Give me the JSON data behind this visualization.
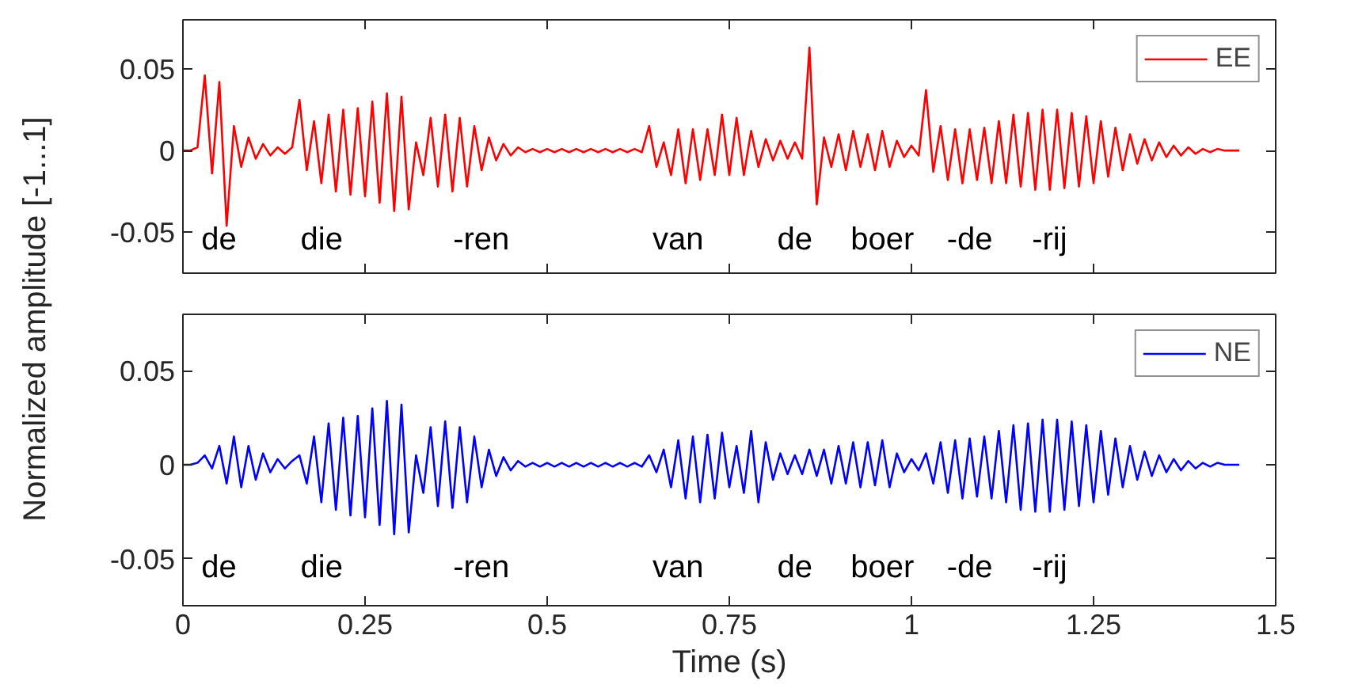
{
  "chart_data": [
    {
      "type": "line",
      "ylabel": "Normalized amplitude [-1...1]",
      "xlim": [
        0,
        1.5
      ],
      "xticks": [
        0,
        0.25,
        0.5,
        0.75,
        1,
        1.25,
        1.5
      ],
      "ylim": [
        -0.075,
        0.08
      ],
      "yticks": [
        -0.05,
        0,
        0.05
      ],
      "tick_labels": "y",
      "grid": false,
      "legend": "top right",
      "marker": "none",
      "line_style": "solid",
      "x": [
        0,
        0.01,
        0.02,
        0.03,
        0.04,
        0.05,
        0.06,
        0.07,
        0.08,
        0.09,
        0.1,
        0.11,
        0.12,
        0.13,
        0.14,
        0.15,
        0.16,
        0.17,
        0.18,
        0.19,
        0.2,
        0.21,
        0.22,
        0.23,
        0.24,
        0.25,
        0.26,
        0.27,
        0.28,
        0.29,
        0.3,
        0.31,
        0.32,
        0.33,
        0.34,
        0.35,
        0.36,
        0.37,
        0.38,
        0.39,
        0.4,
        0.41,
        0.42,
        0.43,
        0.44,
        0.45,
        0.46,
        0.47,
        0.48,
        0.49,
        0.5,
        0.51,
        0.52,
        0.53,
        0.54,
        0.55,
        0.56,
        0.57,
        0.58,
        0.59,
        0.6,
        0.61,
        0.62,
        0.63,
        0.64,
        0.65,
        0.66,
        0.67,
        0.68,
        0.69,
        0.7,
        0.71,
        0.72,
        0.73,
        0.74,
        0.75,
        0.76,
        0.77,
        0.78,
        0.79,
        0.8,
        0.81,
        0.82,
        0.83,
        0.84,
        0.85,
        0.86,
        0.87,
        0.88,
        0.89,
        0.9,
        0.91,
        0.92,
        0.93,
        0.94,
        0.95,
        0.96,
        0.97,
        0.98,
        0.99,
        1,
        1.01,
        1.02,
        1.03,
        1.04,
        1.05,
        1.06,
        1.07,
        1.08,
        1.09,
        1.1,
        1.11,
        1.12,
        1.13,
        1.14,
        1.15,
        1.16,
        1.17,
        1.18,
        1.19,
        1.2,
        1.21,
        1.22,
        1.23,
        1.24,
        1.25,
        1.26,
        1.27,
        1.28,
        1.29,
        1.3,
        1.31,
        1.32,
        1.33,
        1.34,
        1.35,
        1.36,
        1.37,
        1.38,
        1.39,
        1.4,
        1.41,
        1.42,
        1.43,
        1.44,
        1.45
      ],
      "series": [
        {
          "name": "EE",
          "color": "#ff0000",
          "values": [
            0,
            0,
            0.002,
            0.046,
            -0.014,
            0.042,
            -0.046,
            0.015,
            -0.01,
            0.008,
            -0.005,
            0.004,
            -0.003,
            0.002,
            -0.002,
            0.002,
            0.031,
            -0.012,
            0.018,
            -0.02,
            0.022,
            -0.025,
            0.025,
            -0.027,
            0.026,
            -0.028,
            0.03,
            -0.032,
            0.035,
            -0.037,
            0.033,
            -0.036,
            0.005,
            -0.015,
            0.02,
            -0.022,
            0.022,
            -0.025,
            0.02,
            -0.022,
            0.015,
            -0.012,
            0.008,
            -0.006,
            0.004,
            -0.003,
            0.002,
            -0.001,
            0.001,
            -0.001,
            0.001,
            -0.001,
            0.001,
            -0.001,
            0.001,
            -0.001,
            0.001,
            -0.001,
            0.001,
            -0.001,
            0.001,
            -0.001,
            0.001,
            -0.001,
            0.015,
            -0.01,
            0.005,
            -0.015,
            0.013,
            -0.02,
            0.013,
            -0.018,
            0.013,
            -0.015,
            0.022,
            -0.015,
            0.02,
            -0.015,
            0.012,
            -0.01,
            0.007,
            -0.006,
            0.006,
            -0.005,
            0.005,
            -0.005,
            0.063,
            -0.033,
            0.008,
            -0.01,
            0.01,
            -0.012,
            0.012,
            -0.01,
            0.01,
            -0.012,
            0.012,
            -0.01,
            0.006,
            -0.004,
            0.003,
            -0.003,
            0.037,
            -0.013,
            0.015,
            -0.018,
            0.013,
            -0.02,
            0.013,
            -0.018,
            0.014,
            -0.02,
            0.018,
            -0.02,
            0.022,
            -0.022,
            0.023,
            -0.024,
            0.025,
            -0.024,
            0.025,
            -0.023,
            0.023,
            -0.022,
            0.021,
            -0.02,
            0.018,
            -0.016,
            0.014,
            -0.012,
            0.01,
            -0.008,
            0.007,
            -0.006,
            0.005,
            -0.004,
            0.003,
            -0.003,
            0.002,
            -0.002,
            0.001,
            -0.001,
            0.001,
            0,
            0,
            0
          ]
        }
      ],
      "annotations": [
        "de",
        "die",
        "-ren",
        "van",
        "de",
        "boer",
        "-de",
        "-rij"
      ]
    },
    {
      "type": "line",
      "xlabel": "Time (s)",
      "xlim": [
        0,
        1.5
      ],
      "xticks": [
        0,
        0.25,
        0.5,
        0.75,
        1,
        1.25,
        1.5
      ],
      "ylim": [
        -0.075,
        0.08
      ],
      "yticks": [
        -0.05,
        0,
        0.05
      ],
      "grid": false,
      "legend": "top right",
      "marker": "none",
      "line_style": "solid",
      "x": [
        0,
        0.01,
        0.02,
        0.03,
        0.04,
        0.05,
        0.06,
        0.07,
        0.08,
        0.09,
        0.1,
        0.11,
        0.12,
        0.13,
        0.14,
        0.15,
        0.16,
        0.17,
        0.18,
        0.19,
        0.2,
        0.21,
        0.22,
        0.23,
        0.24,
        0.25,
        0.26,
        0.27,
        0.28,
        0.29,
        0.3,
        0.31,
        0.32,
        0.33,
        0.34,
        0.35,
        0.36,
        0.37,
        0.38,
        0.39,
        0.4,
        0.41,
        0.42,
        0.43,
        0.44,
        0.45,
        0.46,
        0.47,
        0.48,
        0.49,
        0.5,
        0.51,
        0.52,
        0.53,
        0.54,
        0.55,
        0.56,
        0.57,
        0.58,
        0.59,
        0.6,
        0.61,
        0.62,
        0.63,
        0.64,
        0.65,
        0.66,
        0.67,
        0.68,
        0.69,
        0.7,
        0.71,
        0.72,
        0.73,
        0.74,
        0.75,
        0.76,
        0.77,
        0.78,
        0.79,
        0.8,
        0.81,
        0.82,
        0.83,
        0.84,
        0.85,
        0.86,
        0.87,
        0.88,
        0.89,
        0.9,
        0.91,
        0.92,
        0.93,
        0.94,
        0.95,
        0.96,
        0.97,
        0.98,
        0.99,
        1,
        1.01,
        1.02,
        1.03,
        1.04,
        1.05,
        1.06,
        1.07,
        1.08,
        1.09,
        1.1,
        1.11,
        1.12,
        1.13,
        1.14,
        1.15,
        1.16,
        1.17,
        1.18,
        1.19,
        1.2,
        1.21,
        1.22,
        1.23,
        1.24,
        1.25,
        1.26,
        1.27,
        1.28,
        1.29,
        1.3,
        1.31,
        1.32,
        1.33,
        1.34,
        1.35,
        1.36,
        1.37,
        1.38,
        1.39,
        1.4,
        1.41,
        1.42,
        1.43,
        1.44,
        1.45
      ],
      "series": [
        {
          "name": "NE",
          "color": "#0000ff",
          "values": [
            0,
            0,
            0.001,
            0.005,
            -0.002,
            0.01,
            -0.01,
            0.015,
            -0.012,
            0.01,
            -0.008,
            0.006,
            -0.004,
            0.003,
            -0.002,
            0.002,
            0.005,
            -0.01,
            0.015,
            -0.02,
            0.022,
            -0.024,
            0.025,
            -0.027,
            0.026,
            -0.028,
            0.03,
            -0.032,
            0.034,
            -0.037,
            0.032,
            -0.036,
            0.005,
            -0.015,
            0.02,
            -0.022,
            0.023,
            -0.023,
            0.02,
            -0.02,
            0.015,
            -0.012,
            0.008,
            -0.006,
            0.004,
            -0.003,
            0.002,
            -0.001,
            0.001,
            -0.001,
            0.001,
            -0.001,
            0.001,
            -0.001,
            0.001,
            -0.001,
            0.001,
            -0.001,
            0.001,
            -0.001,
            0.001,
            -0.001,
            0.001,
            -0.001,
            0.005,
            -0.004,
            0.008,
            -0.012,
            0.013,
            -0.018,
            0.015,
            -0.02,
            0.016,
            -0.018,
            0.017,
            -0.012,
            0.01,
            -0.015,
            0.018,
            -0.02,
            0.012,
            -0.008,
            0.006,
            -0.005,
            0.005,
            -0.005,
            0.008,
            -0.006,
            0.008,
            -0.01,
            0.01,
            -0.01,
            0.012,
            -0.012,
            0.012,
            -0.011,
            0.013,
            -0.012,
            0.006,
            -0.004,
            0.003,
            -0.003,
            0.006,
            -0.01,
            0.012,
            -0.015,
            0.013,
            -0.018,
            0.014,
            -0.017,
            0.015,
            -0.018,
            0.018,
            -0.02,
            0.021,
            -0.024,
            0.022,
            -0.025,
            0.024,
            -0.025,
            0.024,
            -0.024,
            0.023,
            -0.022,
            0.021,
            -0.02,
            0.018,
            -0.016,
            0.014,
            -0.012,
            0.01,
            -0.008,
            0.007,
            -0.006,
            0.005,
            -0.004,
            0.003,
            -0.003,
            0.002,
            -0.002,
            0.001,
            -0.001,
            0.001,
            0,
            0,
            0
          ]
        }
      ],
      "annotations": [
        "de",
        "die",
        "-ren",
        "van",
        "de",
        "boer",
        "-de",
        "-rij"
      ]
    }
  ]
}
